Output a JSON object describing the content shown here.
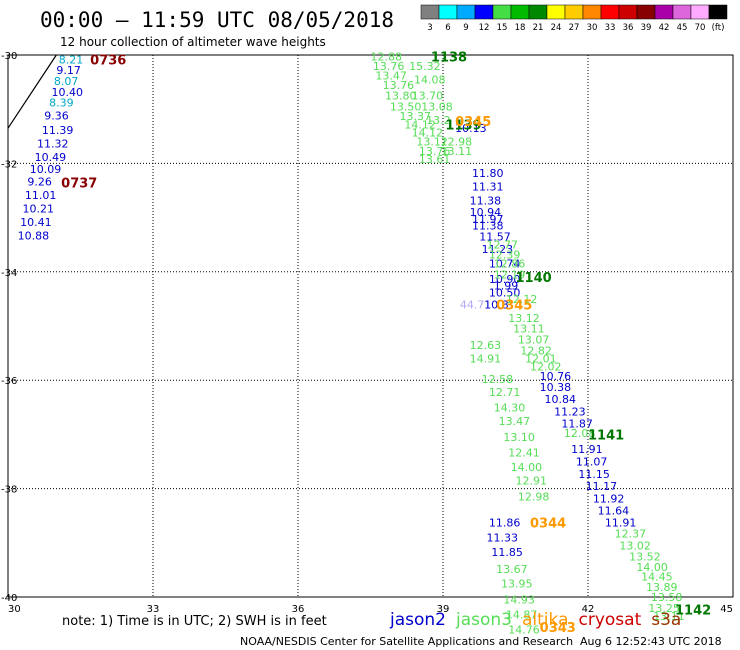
{
  "chart_data": {
    "type": "scatter",
    "title": "00:00 — 11:59 UTC 08/05/2018",
    "subtitle": "12 hour collection of altimeter wave heights",
    "xlim": [
      30,
      45
    ],
    "ylim": [
      -40,
      -30
    ],
    "x_ticks": [
      "30",
      "33",
      "36",
      "39",
      "42",
      "45"
    ],
    "y_ticks": [
      {
        "value": -30,
        "label": "-30"
      },
      {
        "value": -32,
        "label": "-32"
      },
      {
        "value": -34,
        "label": "-34"
      },
      {
        "value": -36,
        "label": "-36"
      },
      {
        "value": -38,
        "label": "-38"
      },
      {
        "value": -40,
        "label": "-40"
      }
    ],
    "grid": "dotted",
    "colorbar": {
      "bounds": [
        "3",
        "6",
        "9",
        "12",
        "15",
        "18",
        "21",
        "24",
        "27",
        "30",
        "33",
        "36",
        "39",
        "42",
        "45",
        "70",
        "(ft)"
      ],
      "colors": [
        "#808080",
        "#00ffff",
        "#00aaff",
        "#0000ff",
        "#44dd44",
        "#00bb00",
        "#008800",
        "#ffff00",
        "#ffcc00",
        "#ff8800",
        "#ff0000",
        "#cc0000",
        "#880000",
        "#aa00aa",
        "#dd66dd",
        "#ffaaff",
        "#000000"
      ]
    },
    "series": [
      {
        "name": "jason2",
        "color": "#0000cc",
        "points": [
          {
            "x": 31.05,
            "y": -30.08,
            "label": "8.21",
            "color": "#00a6c8"
          },
          {
            "x": 31.0,
            "y": -30.28,
            "label": "9.17",
            "color": "#0000cc"
          },
          {
            "x": 30.95,
            "y": -30.48,
            "label": "8.07",
            "color": "#00a6c8"
          },
          {
            "x": 30.9,
            "y": -30.68,
            "label": "10.40",
            "color": "#0000cc"
          },
          {
            "x": 30.85,
            "y": -30.88,
            "label": "8.39",
            "color": "#00a6c8"
          },
          {
            "x": 30.75,
            "y": -31.12,
            "label": "9.36",
            "color": "#0000cc"
          },
          {
            "x": 30.7,
            "y": -31.38,
            "label": "11.39",
            "color": "#0000cc"
          },
          {
            "x": 30.6,
            "y": -31.63,
            "label": "11.32",
            "color": "#0000cc"
          },
          {
            "x": 30.55,
            "y": -31.88,
            "label": "10.49",
            "color": "#0000cc"
          },
          {
            "x": 30.45,
            "y": -32.1,
            "label": "10.09",
            "color": "#0000cc"
          },
          {
            "x": 30.4,
            "y": -32.33,
            "label": "9.26",
            "color": "#0000cc"
          },
          {
            "x": 30.35,
            "y": -32.58,
            "label": "11.01",
            "color": "#0000cc"
          },
          {
            "x": 30.3,
            "y": -32.83,
            "label": "10.21",
            "color": "#0000cc"
          },
          {
            "x": 30.25,
            "y": -33.08,
            "label": "10.41",
            "color": "#0000cc"
          },
          {
            "x": 30.2,
            "y": -33.33,
            "label": "10.88",
            "color": "#0000cc"
          },
          {
            "x": 39.25,
            "y": -31.35,
            "label": "10.13",
            "color": "#0000cc"
          },
          {
            "x": 39.6,
            "y": -32.18,
            "label": "11.80",
            "color": "#0000cc"
          },
          {
            "x": 39.6,
            "y": -32.43,
            "label": "11.31",
            "color": "#0000cc"
          },
          {
            "x": 39.55,
            "y": -32.68,
            "label": "11.38",
            "color": "#0000cc"
          },
          {
            "x": 39.55,
            "y": -32.9,
            "label": "10.94",
            "color": "#0000cc"
          },
          {
            "x": 39.6,
            "y": -33.03,
            "label": "11.97",
            "color": "#0000cc"
          },
          {
            "x": 39.6,
            "y": -33.15,
            "label": "11.38",
            "color": "#0000cc"
          },
          {
            "x": 39.75,
            "y": -33.35,
            "label": "11.57",
            "color": "#0000cc"
          },
          {
            "x": 39.8,
            "y": -33.58,
            "label": "11.23",
            "color": "#0000cc"
          },
          {
            "x": 39.95,
            "y": -33.85,
            "label": "10.74",
            "color": "#0000cc"
          },
          {
            "x": 39.95,
            "y": -34.13,
            "label": "10.90",
            "color": "#0000cc"
          },
          {
            "x": 40.05,
            "y": -34.25,
            "label": "1.99",
            "color": "#0000cc"
          },
          {
            "x": 39.95,
            "y": -34.38,
            "label": "10.50",
            "color": "#0000cc"
          },
          {
            "x": 41.0,
            "y": -35.92,
            "label": "10.76",
            "color": "#0000cc"
          },
          {
            "x": 41.0,
            "y": -36.13,
            "label": "10.38",
            "color": "#0000cc"
          },
          {
            "x": 41.1,
            "y": -36.35,
            "label": "10.84",
            "color": "#0000cc"
          },
          {
            "x": 41.3,
            "y": -36.58,
            "label": "11.23",
            "color": "#0000cc"
          },
          {
            "x": 41.45,
            "y": -36.8,
            "label": "11.87",
            "color": "#0000cc"
          },
          {
            "x": 41.65,
            "y": -37.27,
            "label": "11.91",
            "color": "#0000cc"
          },
          {
            "x": 41.75,
            "y": -37.5,
            "label": "11.07",
            "color": "#0000cc"
          },
          {
            "x": 41.8,
            "y": -37.73,
            "label": "11.15",
            "color": "#0000cc"
          },
          {
            "x": 41.95,
            "y": -37.95,
            "label": "11.17",
            "color": "#0000cc"
          },
          {
            "x": 42.1,
            "y": -38.18,
            "label": "11.92",
            "color": "#0000cc"
          },
          {
            "x": 42.2,
            "y": -38.4,
            "label": "11.64",
            "color": "#0000cc"
          },
          {
            "x": 42.35,
            "y": -38.63,
            "label": "11.91",
            "color": "#0000cc"
          },
          {
            "x": 39.95,
            "y": -38.63,
            "label": "11.86",
            "color": "#0000cc"
          },
          {
            "x": 39.9,
            "y": -38.9,
            "label": "11.33",
            "color": "#0000cc"
          },
          {
            "x": 40.0,
            "y": -39.17,
            "label": "11.85",
            "color": "#0000cc"
          }
        ]
      },
      {
        "name": "jason3",
        "color": "#55dd55",
        "points": [
          {
            "x": 37.5,
            "y": -30.03,
            "label": "12.88",
            "color": "#55dd55"
          },
          {
            "x": 37.55,
            "y": -30.2,
            "label": "13.76",
            "color": "#55dd55"
          },
          {
            "x": 38.3,
            "y": -30.2,
            "label": "15.32",
            "color": "#55dd55"
          },
          {
            "x": 37.6,
            "y": -30.38,
            "label": "13.47",
            "color": "#55dd55"
          },
          {
            "x": 38.4,
            "y": -30.45,
            "label": "14.08",
            "color": "#55dd55"
          },
          {
            "x": 37.75,
            "y": -30.55,
            "label": "13.76",
            "color": "#55dd55"
          },
          {
            "x": 37.8,
            "y": -30.75,
            "label": "13.80",
            "color": "#55dd55"
          },
          {
            "x": 38.35,
            "y": -30.75,
            "label": "13.70",
            "color": "#55dd55"
          },
          {
            "x": 37.9,
            "y": -30.95,
            "label": "13.50",
            "color": "#55dd55"
          },
          {
            "x": 38.55,
            "y": -30.95,
            "label": "13.08",
            "color": "#55dd55"
          },
          {
            "x": 38.1,
            "y": -31.13,
            "label": "13.37",
            "color": "#55dd55"
          },
          {
            "x": 38.65,
            "y": -31.2,
            "label": "13.2",
            "color": "#55dd55"
          },
          {
            "x": 38.2,
            "y": -31.28,
            "label": "14.12",
            "color": "#55dd55"
          },
          {
            "x": 38.35,
            "y": -31.43,
            "label": "14.12",
            "color": "#55dd55"
          },
          {
            "x": 38.45,
            "y": -31.6,
            "label": "13.12",
            "color": "#55dd55"
          },
          {
            "x": 38.95,
            "y": -31.6,
            "label": "12.98",
            "color": "#55dd55"
          },
          {
            "x": 38.5,
            "y": -31.77,
            "label": "13.76",
            "color": "#55dd55"
          },
          {
            "x": 38.95,
            "y": -31.77,
            "label": "13.11",
            "color": "#55dd55"
          },
          {
            "x": 38.5,
            "y": -31.92,
            "label": "13.61",
            "color": "#55dd55"
          },
          {
            "x": 39.9,
            "y": -33.5,
            "label": "12.77",
            "color": "#55dd55"
          },
          {
            "x": 39.95,
            "y": -33.68,
            "label": "12.39",
            "color": "#55dd55"
          },
          {
            "x": 40.05,
            "y": -33.85,
            "label": "12.86",
            "color": "#55dd55"
          },
          {
            "x": 40.05,
            "y": -34.05,
            "label": "12.19",
            "color": "#55dd55"
          },
          {
            "x": 40.3,
            "y": -34.5,
            "label": "12.12",
            "color": "#55dd55"
          },
          {
            "x": 40.35,
            "y": -34.85,
            "label": "13.12",
            "color": "#55dd55"
          },
          {
            "x": 40.45,
            "y": -35.05,
            "label": "13.11",
            "color": "#55dd55"
          },
          {
            "x": 40.55,
            "y": -35.25,
            "label": "13.07",
            "color": "#55dd55"
          },
          {
            "x": 39.55,
            "y": -35.35,
            "label": "12.63",
            "color": "#55dd55"
          },
          {
            "x": 40.6,
            "y": -35.45,
            "label": "12.82",
            "color": "#55dd55"
          },
          {
            "x": 39.55,
            "y": -35.6,
            "label": "14.91",
            "color": "#55dd55"
          },
          {
            "x": 40.7,
            "y": -35.6,
            "label": "12.01",
            "color": "#55dd55"
          },
          {
            "x": 40.8,
            "y": -35.75,
            "label": "12.02",
            "color": "#55dd55"
          },
          {
            "x": 39.8,
            "y": -35.98,
            "label": "12.58",
            "color": "#55dd55"
          },
          {
            "x": 39.95,
            "y": -36.22,
            "label": "12.71",
            "color": "#55dd55"
          },
          {
            "x": 40.05,
            "y": -36.5,
            "label": "14.30",
            "color": "#55dd55"
          },
          {
            "x": 40.15,
            "y": -36.75,
            "label": "13.47",
            "color": "#55dd55"
          },
          {
            "x": 40.25,
            "y": -37.05,
            "label": "13.10",
            "color": "#55dd55"
          },
          {
            "x": 41.5,
            "y": -36.97,
            "label": "12.08",
            "color": "#55dd55"
          },
          {
            "x": 40.35,
            "y": -37.33,
            "label": "12.41",
            "color": "#55dd55"
          },
          {
            "x": 40.4,
            "y": -37.6,
            "label": "14.00",
            "color": "#55dd55"
          },
          {
            "x": 40.5,
            "y": -37.85,
            "label": "12.91",
            "color": "#55dd55"
          },
          {
            "x": 40.55,
            "y": -38.15,
            "label": "12.98",
            "color": "#55dd55"
          },
          {
            "x": 42.55,
            "y": -38.83,
            "label": "12.37",
            "color": "#55dd55"
          },
          {
            "x": 42.65,
            "y": -39.05,
            "label": "13.02",
            "color": "#55dd55"
          },
          {
            "x": 42.85,
            "y": -39.25,
            "label": "13.52",
            "color": "#55dd55"
          },
          {
            "x": 43.0,
            "y": -39.45,
            "label": "14.00",
            "color": "#55dd55"
          },
          {
            "x": 43.1,
            "y": -39.62,
            "label": "14.45",
            "color": "#55dd55"
          },
          {
            "x": 43.2,
            "y": -39.82,
            "label": "13.89",
            "color": "#55dd55"
          },
          {
            "x": 43.3,
            "y": -40.0,
            "label": "13.58",
            "color": "#55dd55"
          },
          {
            "x": 43.25,
            "y": -40.2,
            "label": "13.25",
            "color": "#55dd55"
          },
          {
            "x": 43.35,
            "y": -40.35,
            "label": "13.11",
            "color": "#55dd55"
          },
          {
            "x": 40.1,
            "y": -39.48,
            "label": "13.67",
            "color": "#55dd55"
          },
          {
            "x": 40.2,
            "y": -39.75,
            "label": "13.95",
            "color": "#55dd55"
          },
          {
            "x": 40.25,
            "y": -40.05,
            "label": "14.93",
            "color": "#55dd55"
          },
          {
            "x": 40.3,
            "y": -40.32,
            "label": "14.87",
            "color": "#55dd55"
          },
          {
            "x": 40.35,
            "y": -40.6,
            "label": "14.76",
            "color": "#55dd55"
          }
        ]
      },
      {
        "name": "altika",
        "color": "#ff9900",
        "points": [
          {
            "x": 39.35,
            "y": -34.6,
            "label": "44.71",
            "color": "#b0a8f0"
          },
          {
            "x": 39.85,
            "y": -34.6,
            "label": "10.8",
            "color": "#0000cc"
          }
        ]
      },
      {
        "name": "cryosat",
        "color": "#cc0000",
        "points": []
      },
      {
        "name": "s3a",
        "color": "#993300",
        "points": []
      }
    ],
    "time_labels": [
      {
        "x": 31.7,
        "y": -30.08,
        "label": "0736",
        "color": "#880000"
      },
      {
        "x": 31.1,
        "y": -32.35,
        "label": "0737",
        "color": "#880000"
      },
      {
        "x": 38.75,
        "y": -30.03,
        "label": "1138",
        "color": "#007700"
      },
      {
        "x": 39.05,
        "y": -31.28,
        "label": "1139",
        "color": "#007700"
      },
      {
        "x": 40.5,
        "y": -34.1,
        "label": "1140",
        "color": "#007700"
      },
      {
        "x": 42.0,
        "y": -37.0,
        "label": "1141",
        "color": "#007700"
      },
      {
        "x": 43.8,
        "y": -40.23,
        "label": "1142",
        "color": "#007700"
      },
      {
        "x": 39.25,
        "y": -31.22,
        "label": "0345",
        "color": "#ff9900"
      },
      {
        "x": 40.1,
        "y": -34.6,
        "label": "0345",
        "color": "#ff9900"
      },
      {
        "x": 40.8,
        "y": -38.63,
        "label": "0344",
        "color": "#ff9900"
      },
      {
        "x": 41.0,
        "y": -40.55,
        "label": "0343",
        "color": "#ff9900"
      }
    ],
    "track_line": [
      [
        31.0,
        -30.0
      ],
      [
        30.0,
        -31.35
      ]
    ]
  },
  "footer": {
    "note": "note: 1) Time is in UTC; 2) SWH is in feet",
    "credit": "NOAA/NESDIS Center for Satellite Applications and Research",
    "timestamp": "Aug  6 12:52:43 UTC 2018"
  }
}
